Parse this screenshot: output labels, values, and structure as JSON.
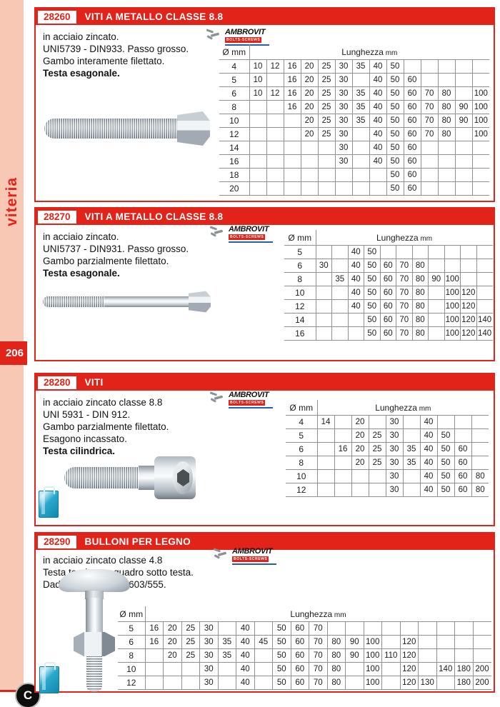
{
  "colors": {
    "accent_red": "#e2231a",
    "sidebar_pink": "#f9c8b4",
    "package_blue": "#2aa9cd",
    "brand_blue": "#2a5caa"
  },
  "sidebar": {
    "category": "viteria",
    "page_number": "206",
    "c_mark": "C"
  },
  "brand": {
    "name": "AMBROVIT",
    "sub": "BOLTS-SCREWS"
  },
  "table_labels": {
    "diam": "Ø mm",
    "length": "Lunghezza",
    "unit": "mm"
  },
  "sections": [
    {
      "code": "28260",
      "title": "VITI A METALLO CLASSE 8.8",
      "desc": [
        "in acciaio zincato.",
        "UNI5739 - DIN933. Passo grosso.",
        "Gambo interamente filettato."
      ],
      "desc_bold": "Testa esagonale.",
      "table": {
        "rows": [
          {
            "d": "4",
            "c": [
              "10",
              "12",
              "16",
              "20",
              "25",
              "30",
              "35",
              "40",
              "50",
              "",
              "",
              "",
              "",
              ""
            ]
          },
          {
            "d": "5",
            "c": [
              "10",
              "",
              "16",
              "20",
              "25",
              "30",
              "",
              "40",
              "50",
              "60",
              "",
              "",
              "",
              ""
            ]
          },
          {
            "d": "6",
            "c": [
              "10",
              "12",
              "16",
              "20",
              "25",
              "30",
              "35",
              "40",
              "50",
              "60",
              "70",
              "80",
              "",
              "100"
            ]
          },
          {
            "d": "8",
            "c": [
              "",
              "",
              "16",
              "20",
              "25",
              "30",
              "35",
              "40",
              "50",
              "60",
              "70",
              "80",
              "90",
              "100"
            ]
          },
          {
            "d": "10",
            "c": [
              "",
              "",
              "",
              "20",
              "25",
              "30",
              "35",
              "40",
              "50",
              "60",
              "70",
              "80",
              "90",
              "100"
            ]
          },
          {
            "d": "12",
            "c": [
              "",
              "",
              "",
              "20",
              "25",
              "30",
              "",
              "40",
              "50",
              "60",
              "70",
              "80",
              "",
              "100"
            ]
          },
          {
            "d": "14",
            "c": [
              "",
              "",
              "",
              "",
              "",
              "30",
              "",
              "40",
              "50",
              "60",
              "",
              "",
              "",
              ""
            ]
          },
          {
            "d": "16",
            "c": [
              "",
              "",
              "",
              "",
              "",
              "30",
              "",
              "40",
              "50",
              "60",
              "",
              "",
              "",
              ""
            ]
          },
          {
            "d": "18",
            "c": [
              "",
              "",
              "",
              "",
              "",
              "",
              "",
              "",
              "50",
              "60",
              "",
              "",
              "",
              ""
            ]
          },
          {
            "d": "20",
            "c": [
              "",
              "",
              "",
              "",
              "",
              "",
              "",
              "",
              "50",
              "60",
              "",
              "",
              "",
              ""
            ]
          }
        ]
      }
    },
    {
      "code": "28270",
      "title": "VITI A METALLO CLASSE 8.8",
      "desc": [
        "in acciaio zincato.",
        "UNI5737 - DIN931. Passo grosso.",
        "Gambo parzialmente filettato."
      ],
      "desc_bold": "Testa esagonale.",
      "table": {
        "rows": [
          {
            "d": "5",
            "c": [
              "",
              "",
              "40",
              "50",
              "",
              "",
              "",
              "",
              "",
              "",
              ""
            ]
          },
          {
            "d": "6",
            "c": [
              "30",
              "",
              "40",
              "50",
              "60",
              "70",
              "80",
              "",
              "",
              "",
              ""
            ]
          },
          {
            "d": "8",
            "c": [
              "",
              "35",
              "40",
              "50",
              "60",
              "70",
              "80",
              "90",
              "100",
              "",
              ""
            ]
          },
          {
            "d": "10",
            "c": [
              "",
              "",
              "40",
              "50",
              "60",
              "70",
              "80",
              "",
              "100",
              "120",
              ""
            ]
          },
          {
            "d": "12",
            "c": [
              "",
              "",
              "40",
              "50",
              "60",
              "70",
              "80",
              "",
              "100",
              "120",
              ""
            ]
          },
          {
            "d": "14",
            "c": [
              "",
              "",
              "",
              "50",
              "60",
              "70",
              "80",
              "",
              "100",
              "120",
              "140"
            ]
          },
          {
            "d": "16",
            "c": [
              "",
              "",
              "",
              "50",
              "60",
              "70",
              "80",
              "",
              "100",
              "120",
              "140"
            ]
          }
        ]
      }
    },
    {
      "code": "28280",
      "title": "VITI",
      "desc": [
        "in acciaio zincato classe 8.8",
        "UNI 5931 - DIN 912.",
        "Gambo parzialmente filettato.",
        "Esagono incassato."
      ],
      "desc_bold": "Testa cilindrica.",
      "table": {
        "rows": [
          {
            "d": "4",
            "c": [
              "14",
              "",
              "20",
              "",
              "30",
              "",
              "40",
              "",
              "",
              ""
            ]
          },
          {
            "d": "5",
            "c": [
              "",
              "",
              "20",
              "25",
              "30",
              "",
              "40",
              "50",
              "",
              ""
            ]
          },
          {
            "d": "6",
            "c": [
              "",
              "16",
              "20",
              "25",
              "30",
              "35",
              "40",
              "50",
              "60",
              ""
            ]
          },
          {
            "d": "8",
            "c": [
              "",
              "",
              "20",
              "25",
              "30",
              "35",
              "40",
              "50",
              "60",
              ""
            ]
          },
          {
            "d": "10",
            "c": [
              "",
              "",
              "",
              "",
              "30",
              "",
              "40",
              "50",
              "60",
              "80"
            ]
          },
          {
            "d": "12",
            "c": [
              "",
              "",
              "",
              "",
              "30",
              "",
              "40",
              "50",
              "60",
              "80"
            ]
          }
        ]
      }
    },
    {
      "code": "28290",
      "title": "BULLONI PER LEGNO",
      "desc": [
        "in acciaio zincato classe 4.8",
        "Testa tonda con quadro sotto testa.",
        "Dadi esagonali  DIN 603/555."
      ],
      "desc_bold": null,
      "table": {
        "rows": [
          {
            "d": "5",
            "c": [
              "16",
              "20",
              "25",
              "30",
              "",
              "40",
              "",
              "50",
              "60",
              "70",
              "",
              "",
              "",
              "",
              "",
              "",
              "",
              "",
              ""
            ]
          },
          {
            "d": "6",
            "c": [
              "16",
              "20",
              "25",
              "30",
              "35",
              "40",
              "45",
              "50",
              "60",
              "70",
              "80",
              "90",
              "100",
              "",
              "120",
              "",
              "",
              "",
              ""
            ]
          },
          {
            "d": "8",
            "c": [
              "",
              "20",
              "25",
              "30",
              "35",
              "40",
              "",
              "50",
              "60",
              "70",
              "80",
              "90",
              "100",
              "110",
              "120",
              "",
              "",
              "",
              ""
            ]
          },
          {
            "d": "10",
            "c": [
              "",
              "",
              "",
              "30",
              "",
              "40",
              "",
              "50",
              "60",
              "70",
              "80",
              "",
              "100",
              "",
              "120",
              "",
              "140",
              "180",
              "200"
            ]
          },
          {
            "d": "12",
            "c": [
              "",
              "",
              "",
              "30",
              "",
              "40",
              "",
              "50",
              "60",
              "70",
              "80",
              "",
              "100",
              "",
              "120",
              "130",
              "",
              "180",
              "200"
            ]
          }
        ]
      }
    }
  ]
}
